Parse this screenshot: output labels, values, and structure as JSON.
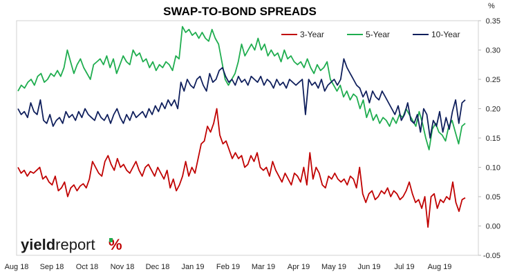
{
  "chart_data": {
    "type": "line",
    "title": "SWAP-TO-BOND SPREADS",
    "y_unit": "%",
    "ylim": [
      -0.05,
      0.35
    ],
    "y_ticks": [
      "0.35",
      "0.30",
      "0.25",
      "0.20",
      "0.15",
      "0.10",
      "0.05",
      "0.00",
      "-0.05"
    ],
    "x_ticks": [
      "Aug 18",
      "Sep 18",
      "Oct 18",
      "Nov 18",
      "Dec 18",
      "Jan 19",
      "Feb 19",
      "Mar 19",
      "Apr 19",
      "May 19",
      "Jun 19",
      "Jul 19",
      "Aug 19"
    ],
    "legend_position": "top-right",
    "grid": false,
    "series": [
      {
        "name": "3-Year",
        "color": "#c00000",
        "values": [
          0.1,
          0.09,
          0.095,
          0.085,
          0.093,
          0.09,
          0.095,
          0.1,
          0.08,
          0.085,
          0.075,
          0.07,
          0.085,
          0.06,
          0.065,
          0.075,
          0.05,
          0.065,
          0.07,
          0.06,
          0.068,
          0.072,
          0.065,
          0.08,
          0.11,
          0.1,
          0.09,
          0.085,
          0.11,
          0.12,
          0.105,
          0.095,
          0.115,
          0.1,
          0.105,
          0.095,
          0.09,
          0.1,
          0.11,
          0.095,
          0.085,
          0.1,
          0.105,
          0.095,
          0.085,
          0.1,
          0.09,
          0.08,
          0.095,
          0.065,
          0.08,
          0.06,
          0.07,
          0.085,
          0.11,
          0.085,
          0.1,
          0.09,
          0.115,
          0.14,
          0.145,
          0.17,
          0.16,
          0.175,
          0.2,
          0.155,
          0.14,
          0.145,
          0.13,
          0.115,
          0.125,
          0.115,
          0.12,
          0.1,
          0.105,
          0.12,
          0.11,
          0.125,
          0.1,
          0.095,
          0.1,
          0.085,
          0.11,
          0.095,
          0.085,
          0.075,
          0.09,
          0.08,
          0.07,
          0.09,
          0.085,
          0.075,
          0.1,
          0.07,
          0.125,
          0.08,
          0.1,
          0.09,
          0.07,
          0.065,
          0.085,
          0.08,
          0.09,
          0.08,
          0.075,
          0.08,
          0.07,
          0.085,
          0.08,
          0.065,
          0.1,
          0.055,
          0.04,
          0.055,
          0.06,
          0.045,
          0.05,
          0.06,
          0.055,
          0.065,
          0.05,
          0.06,
          0.055,
          0.045,
          0.05,
          0.06,
          0.075,
          0.055,
          0.04,
          0.045,
          0.03,
          0.05,
          -0.002,
          0.05,
          0.055,
          0.03,
          0.045,
          0.04,
          0.05,
          0.045,
          0.075,
          0.04,
          0.025,
          0.045,
          0.048
        ]
      },
      {
        "name": "5-Year",
        "color": "#1fad4f",
        "values": [
          0.23,
          0.24,
          0.235,
          0.245,
          0.25,
          0.24,
          0.255,
          0.26,
          0.245,
          0.25,
          0.26,
          0.255,
          0.265,
          0.255,
          0.27,
          0.3,
          0.28,
          0.26,
          0.275,
          0.285,
          0.27,
          0.26,
          0.25,
          0.275,
          0.28,
          0.285,
          0.275,
          0.29,
          0.27,
          0.285,
          0.26,
          0.275,
          0.29,
          0.28,
          0.275,
          0.3,
          0.29,
          0.295,
          0.28,
          0.285,
          0.27,
          0.28,
          0.265,
          0.275,
          0.27,
          0.28,
          0.275,
          0.265,
          0.29,
          0.285,
          0.34,
          0.33,
          0.335,
          0.325,
          0.33,
          0.32,
          0.33,
          0.32,
          0.315,
          0.335,
          0.32,
          0.31,
          0.28,
          0.25,
          0.24,
          0.25,
          0.26,
          0.28,
          0.31,
          0.29,
          0.3,
          0.31,
          0.3,
          0.32,
          0.3,
          0.31,
          0.29,
          0.3,
          0.29,
          0.295,
          0.28,
          0.3,
          0.285,
          0.29,
          0.28,
          0.275,
          0.28,
          0.27,
          0.285,
          0.27,
          0.26,
          0.275,
          0.265,
          0.27,
          0.28,
          0.25,
          0.24,
          0.23,
          0.24,
          0.22,
          0.23,
          0.215,
          0.225,
          0.22,
          0.2,
          0.215,
          0.185,
          0.2,
          0.18,
          0.19,
          0.175,
          0.185,
          0.18,
          0.17,
          0.185,
          0.175,
          0.19,
          0.185,
          0.2,
          0.19,
          0.18,
          0.17,
          0.195,
          0.175,
          0.15,
          0.13,
          0.165,
          0.175,
          0.16,
          0.155,
          0.145,
          0.17,
          0.18,
          0.16,
          0.14,
          0.17,
          0.175
        ]
      },
      {
        "name": "10-Year",
        "color": "#0f1f5c",
        "values": [
          0.2,
          0.19,
          0.195,
          0.185,
          0.21,
          0.195,
          0.19,
          0.215,
          0.18,
          0.175,
          0.19,
          0.17,
          0.18,
          0.185,
          0.175,
          0.195,
          0.185,
          0.19,
          0.18,
          0.195,
          0.185,
          0.2,
          0.19,
          0.185,
          0.18,
          0.195,
          0.185,
          0.18,
          0.19,
          0.175,
          0.19,
          0.2,
          0.185,
          0.175,
          0.19,
          0.18,
          0.195,
          0.185,
          0.19,
          0.195,
          0.185,
          0.2,
          0.19,
          0.205,
          0.195,
          0.21,
          0.2,
          0.215,
          0.205,
          0.215,
          0.2,
          0.245,
          0.23,
          0.25,
          0.24,
          0.235,
          0.25,
          0.255,
          0.24,
          0.23,
          0.26,
          0.245,
          0.25,
          0.265,
          0.27,
          0.255,
          0.245,
          0.25,
          0.24,
          0.255,
          0.245,
          0.25,
          0.24,
          0.255,
          0.25,
          0.245,
          0.255,
          0.24,
          0.25,
          0.245,
          0.235,
          0.25,
          0.24,
          0.245,
          0.235,
          0.25,
          0.245,
          0.24,
          0.245,
          0.25,
          0.19,
          0.25,
          0.24,
          0.245,
          0.235,
          0.25,
          0.23,
          0.24,
          0.245,
          0.25,
          0.24,
          0.25,
          0.285,
          0.27,
          0.26,
          0.25,
          0.24,
          0.235,
          0.22,
          0.23,
          0.21,
          0.23,
          0.22,
          0.215,
          0.23,
          0.22,
          0.21,
          0.2,
          0.19,
          0.205,
          0.18,
          0.19,
          0.21,
          0.18,
          0.175,
          0.19,
          0.16,
          0.2,
          0.19,
          0.15,
          0.18,
          0.17,
          0.195,
          0.16,
          0.185,
          0.165,
          0.195,
          0.215,
          0.175,
          0.21,
          0.215
        ]
      }
    ]
  },
  "logo": {
    "text_bold": "yield",
    "text_regular": "report",
    "symbol": "%"
  }
}
